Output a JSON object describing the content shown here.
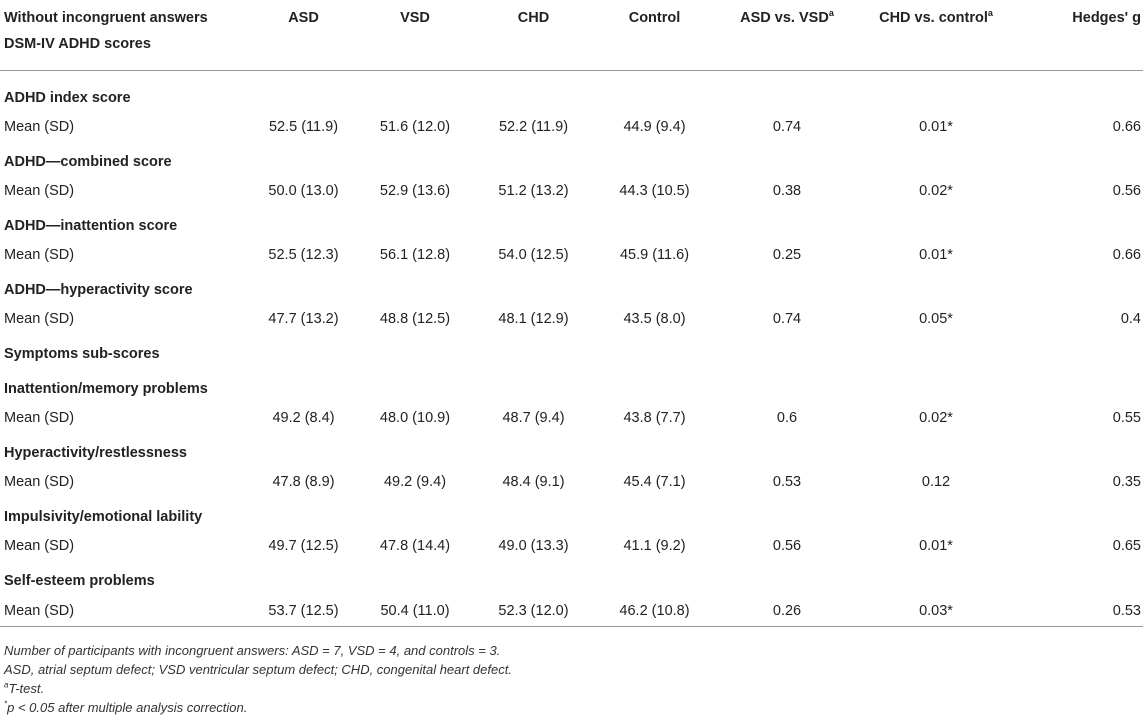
{
  "header": {
    "row_label_line1": "Without incongruent answers",
    "row_label_line2": "DSM-IV ADHD scores",
    "col_asd": "ASD",
    "col_vsd": "VSD",
    "col_chd": "CHD",
    "col_control": "Control",
    "col_asd_vs_vsd": "ASD vs. VSD",
    "col_asd_vs_vsd_sup": "a",
    "col_chd_vs_control": "CHD vs. control",
    "col_chd_vs_control_sup": "a",
    "col_hedges": "Hedges' g"
  },
  "rows": [
    {
      "section": "ADHD index score",
      "label": "Mean (SD)",
      "asd": "52.5 (11.9)",
      "vsd": "51.6 (12.0)",
      "chd": "52.2 (11.9)",
      "control": "44.9 (9.4)",
      "asd_vs_vsd": "0.74",
      "chd_vs_control": "0.01*",
      "hedges": "0.66"
    },
    {
      "section": "ADHD—combined score",
      "label": "Mean (SD)",
      "asd": "50.0 (13.0)",
      "vsd": "52.9 (13.6)",
      "chd": "51.2 (13.2)",
      "control": "44.3 (10.5)",
      "asd_vs_vsd": "0.38",
      "chd_vs_control": "0.02*",
      "hedges": "0.56"
    },
    {
      "section": "ADHD—inattention score",
      "label": "Mean (SD)",
      "asd": "52.5 (12.3)",
      "vsd": "56.1 (12.8)",
      "chd": "54.0 (12.5)",
      "control": "45.9 (11.6)",
      "asd_vs_vsd": "0.25",
      "chd_vs_control": "0.01*",
      "hedges": "0.66"
    },
    {
      "section": "ADHD—hyperactivity score",
      "label": "Mean (SD)",
      "asd": "47.7 (13.2)",
      "vsd": "48.8 (12.5)",
      "chd": "48.1 (12.9)",
      "control": "43.5 (8.0)",
      "asd_vs_vsd": "0.74",
      "chd_vs_control": "0.05*",
      "hedges": "0.4"
    },
    {
      "section": "Inattention/memory problems",
      "label": "Mean (SD)",
      "asd": "49.2 (8.4)",
      "vsd": "48.0 (10.9)",
      "chd": "48.7 (9.4)",
      "control": "43.8 (7.7)",
      "asd_vs_vsd": "0.6",
      "chd_vs_control": "0.02*",
      "hedges": "0.55"
    },
    {
      "section": "Hyperactivity/restlessness",
      "label": "Mean (SD)",
      "asd": "47.8 (8.9)",
      "vsd": "49.2 (9.4)",
      "chd": "48.4 (9.1)",
      "control": "45.4 (7.1)",
      "asd_vs_vsd": "0.53",
      "chd_vs_control": "0.12",
      "hedges": "0.35"
    },
    {
      "section": "Impulsivity/emotional lability",
      "label": "Mean (SD)",
      "asd": "49.7 (12.5)",
      "vsd": "47.8 (14.4)",
      "chd": "49.0 (13.3)",
      "control": "41.1 (9.2)",
      "asd_vs_vsd": "0.56",
      "chd_vs_control": "0.01*",
      "hedges": "0.65"
    },
    {
      "section": "Self-esteem problems",
      "label": "Mean (SD)",
      "asd": "53.7 (12.5)",
      "vsd": "50.4 (11.0)",
      "chd": "52.3 (12.0)",
      "control": "46.2 (10.8)",
      "asd_vs_vsd": "0.26",
      "chd_vs_control": "0.03*",
      "hedges": "0.53"
    }
  ],
  "subheading": "Symptoms sub-scores",
  "notes": {
    "line1": "Number of participants with incongruent answers: ASD = 7, VSD = 4, and controls = 3.",
    "line2": "ASD, atrial septum defect; VSD ventricular septum defect; CHD, congenital heart defect.",
    "line3_sup": "a",
    "line3": "T-test.",
    "line4_sup": "*",
    "line4": "p < 0.05 after multiple analysis correction."
  }
}
